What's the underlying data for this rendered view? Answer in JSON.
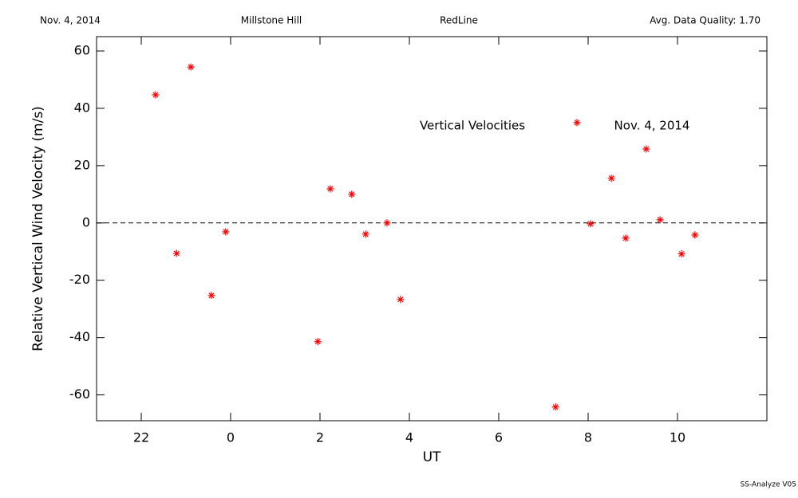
{
  "chart_data": {
    "type": "scatter",
    "header": {
      "date": "Nov. 4, 2014",
      "site": "Millstone Hill",
      "line": "RedLine",
      "quality": "Avg. Data Quality: 1.70"
    },
    "annotations": [
      "Vertical Velocities",
      "Nov. 4, 2014"
    ],
    "footer": "SS-Analyze V05",
    "x_label": "UT",
    "y_label": "Relative Vertical Wind Velocity (m/s)",
    "xlim": [
      -3,
      12
    ],
    "ylim": [
      -69,
      65
    ],
    "xticks": [
      {
        "value": -2,
        "label": "22"
      },
      0,
      2,
      4,
      6,
      8,
      10
    ],
    "yticks": [
      -60,
      -40,
      -20,
      0,
      20,
      40,
      60
    ],
    "reference_line": 0,
    "series": [
      {
        "name": "Vertical Velocities",
        "color": "#ff0000",
        "x": [
          -1.68,
          -1.21,
          -0.89,
          -0.43,
          -0.11,
          1.95,
          2.23,
          2.71,
          3.02,
          3.5,
          3.8,
          7.27,
          7.75,
          8.05,
          8.52,
          8.84,
          9.3,
          9.61,
          10.09,
          10.39
        ],
        "values": [
          44.7,
          -10.6,
          54.4,
          -25.3,
          -3.1,
          -41.4,
          11.9,
          10,
          -3.9,
          0,
          -26.7,
          -64.2,
          35,
          -0.3,
          15.6,
          -5.3,
          25.8,
          1.1,
          -10.8,
          -4.2
        ]
      }
    ]
  }
}
